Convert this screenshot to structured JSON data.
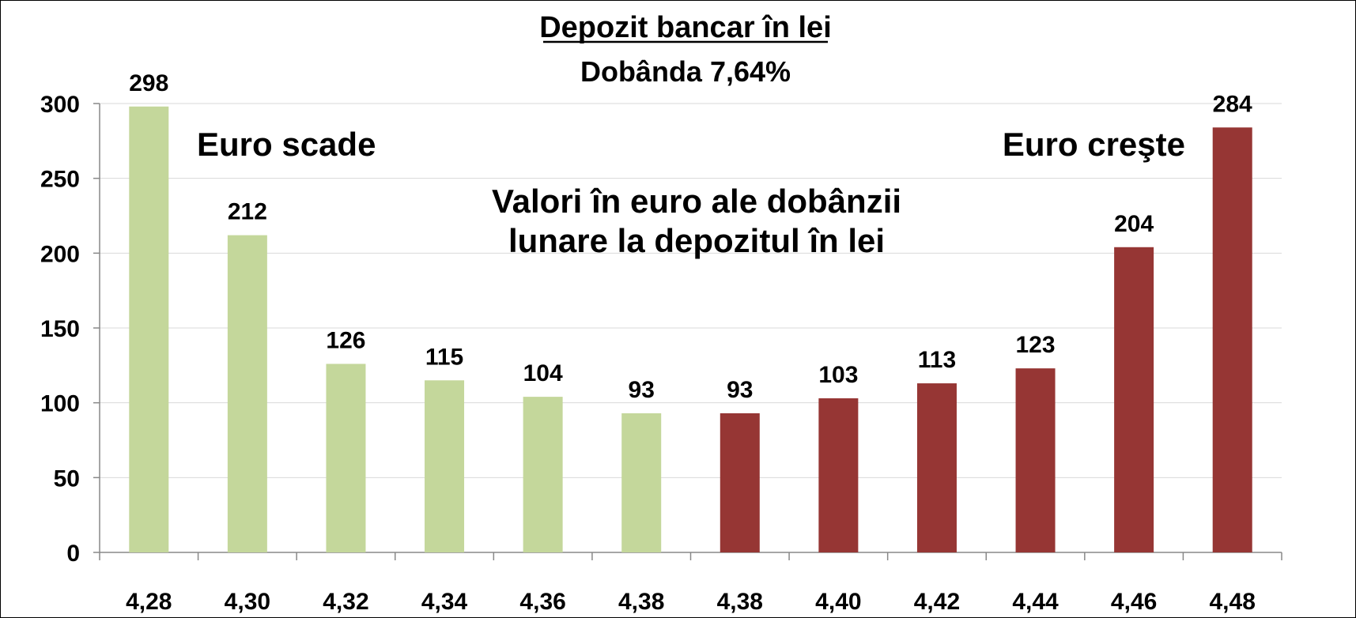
{
  "chart_data": {
    "type": "bar",
    "title": "Depozit bancar în lei",
    "subtitle": "Dobânda 7,64%",
    "categories": [
      "4,28",
      "4,30",
      "4,32",
      "4,34",
      "4,36",
      "4,38",
      "4,38",
      "4,40",
      "4,42",
      "4,44",
      "4,46",
      "4,48"
    ],
    "values": [
      298,
      212,
      126,
      115,
      104,
      93,
      93,
      103,
      113,
      123,
      204,
      284
    ],
    "groups": [
      "scade",
      "scade",
      "scade",
      "scade",
      "scade",
      "scade",
      "creste",
      "creste",
      "creste",
      "creste",
      "creste",
      "creste"
    ],
    "colors": {
      "scade": "#c4d79b",
      "creste": "#963634"
    },
    "ylim": [
      0,
      300
    ],
    "yticks": [
      0,
      50,
      100,
      150,
      200,
      250,
      300
    ],
    "grid": true,
    "annotations": {
      "left": "Euro scade",
      "right": "Euro creşte",
      "center_line1": "Valori în euro ale dobânzii",
      "center_line2": "lunare la depozitul în lei"
    }
  }
}
